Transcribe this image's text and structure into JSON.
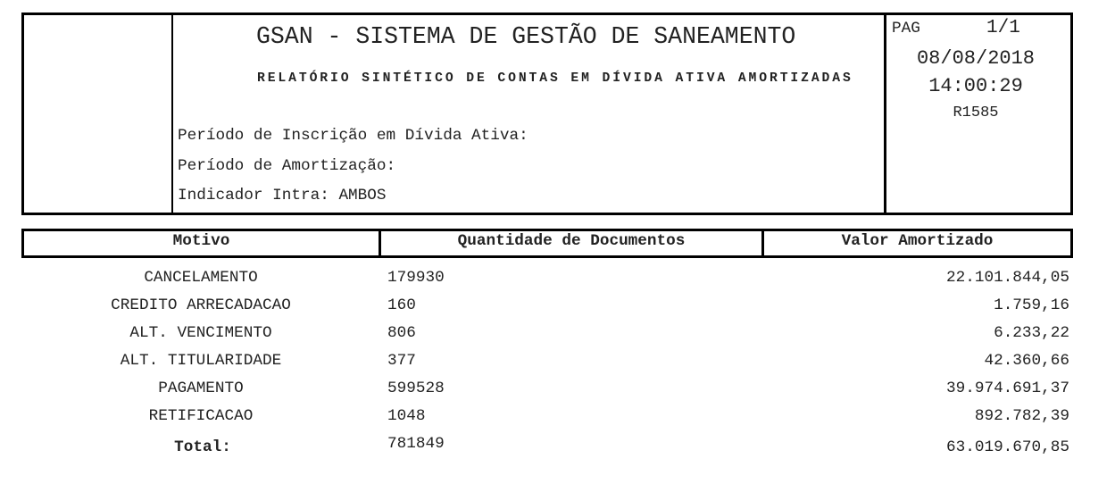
{
  "header": {
    "title": "GSAN - SISTEMA DE GESTÃO DE SANEAMENTO",
    "subtitle": "RELATÓRIO SINTÉTICO DE CONTAS EM DÍVIDA ATIVA AMORTIZADAS",
    "filters": [
      "Período de Inscrição em Dívida Ativa:",
      "Período de Amortização:",
      "Indicador Intra: AMBOS"
    ],
    "page_label": "PAG",
    "page_value": "1/1",
    "date": "08/08/2018",
    "time": "14:00:29",
    "report_code": "R1585"
  },
  "table": {
    "columns": [
      "Motivo",
      "Quantidade de Documentos",
      "Valor Amortizado"
    ],
    "rows": [
      {
        "motivo": "CANCELAMENTO",
        "quantidade": "179930",
        "valor": "22.101.844,05"
      },
      {
        "motivo": "CREDITO ARRECADACAO",
        "quantidade": "160",
        "valor": "1.759,16"
      },
      {
        "motivo": "ALT. VENCIMENTO",
        "quantidade": "806",
        "valor": "6.233,22"
      },
      {
        "motivo": "ALT. TITULARIDADE",
        "quantidade": "377",
        "valor": "42.360,66"
      },
      {
        "motivo": "PAGAMENTO",
        "quantidade": "599528",
        "valor": "39.974.691,37"
      },
      {
        "motivo": "RETIFICACAO",
        "quantidade": "1048",
        "valor": "892.782,39"
      }
    ],
    "total": {
      "label": "Total:",
      "quantidade": "781849",
      "valor": "63.019.670,85"
    }
  }
}
